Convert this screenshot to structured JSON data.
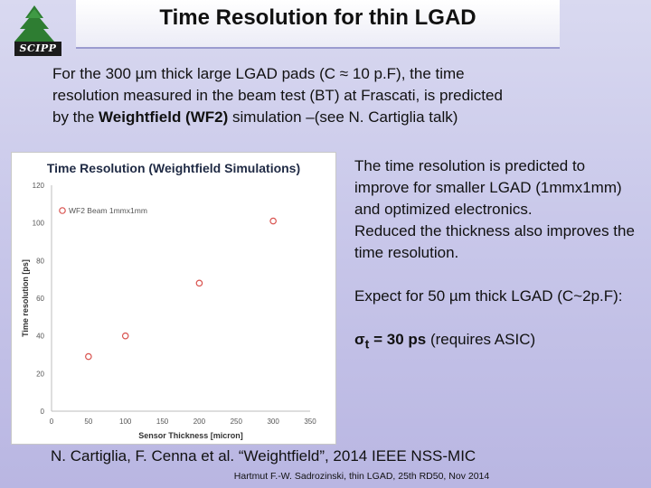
{
  "logo": {
    "text": "SCIPP",
    "icon": "pine-tree-icon"
  },
  "slide": {
    "title": "Time Resolution for thin LGAD"
  },
  "intro": {
    "line1": "For the 300 µm thick large LGAD pads (C ≈ 10 p.F), the time",
    "line2": "resolution measured in the beam test (BT) at Frascati, is predicted",
    "line3_prefix": "by the ",
    "line3_bold": "Weightfield (WF2)",
    "line3_suffix": " simulation –(see N. Cartiglia talk)"
  },
  "right": {
    "p1": "The time resolution is predicted to improve for smaller LGAD (1mmx1mm) and optimized electronics.",
    "p2": "Reduced the thickness also improves the time resolution.",
    "p3": "Expect for 50 µm thick LGAD (C~2p.F):",
    "sigma_symbol": "σ",
    "sigma_sub": "t",
    "sigma_value": " = 30 ps",
    "sigma_note": " (requires ASIC)"
  },
  "reference": "N. Cartiglia, F. Cenna et al. “Weightfield”, 2014 IEEE NSS-MIC",
  "footer": "Hartmut F.-W. Sadrozinski, thin LGAD, 25th RD50, Nov  2014",
  "colors": {
    "marker": "#d9534f",
    "title_rule": "#9b9bcf",
    "chart_title": "#1f2a44"
  },
  "chart_data": {
    "type": "scatter",
    "title": "Time Resolution (Weightfield Simulations)",
    "xlabel": "Sensor Thickness [micron]",
    "ylabel": "Time resolution [ps]",
    "xlim": [
      0,
      350
    ],
    "ylim": [
      0,
      120
    ],
    "xticks": [
      "0",
      "50",
      "100",
      "150",
      "200",
      "250",
      "300",
      "350"
    ],
    "yticks": [
      "0",
      "20",
      "40",
      "60",
      "80",
      "100",
      "120"
    ],
    "grid": false,
    "legend_position": "top-left",
    "series": [
      {
        "name": "WF2 Beam 1mmx1mm",
        "x": [
          50,
          100,
          200,
          300
        ],
        "y": [
          29,
          40,
          68,
          101
        ]
      }
    ]
  }
}
